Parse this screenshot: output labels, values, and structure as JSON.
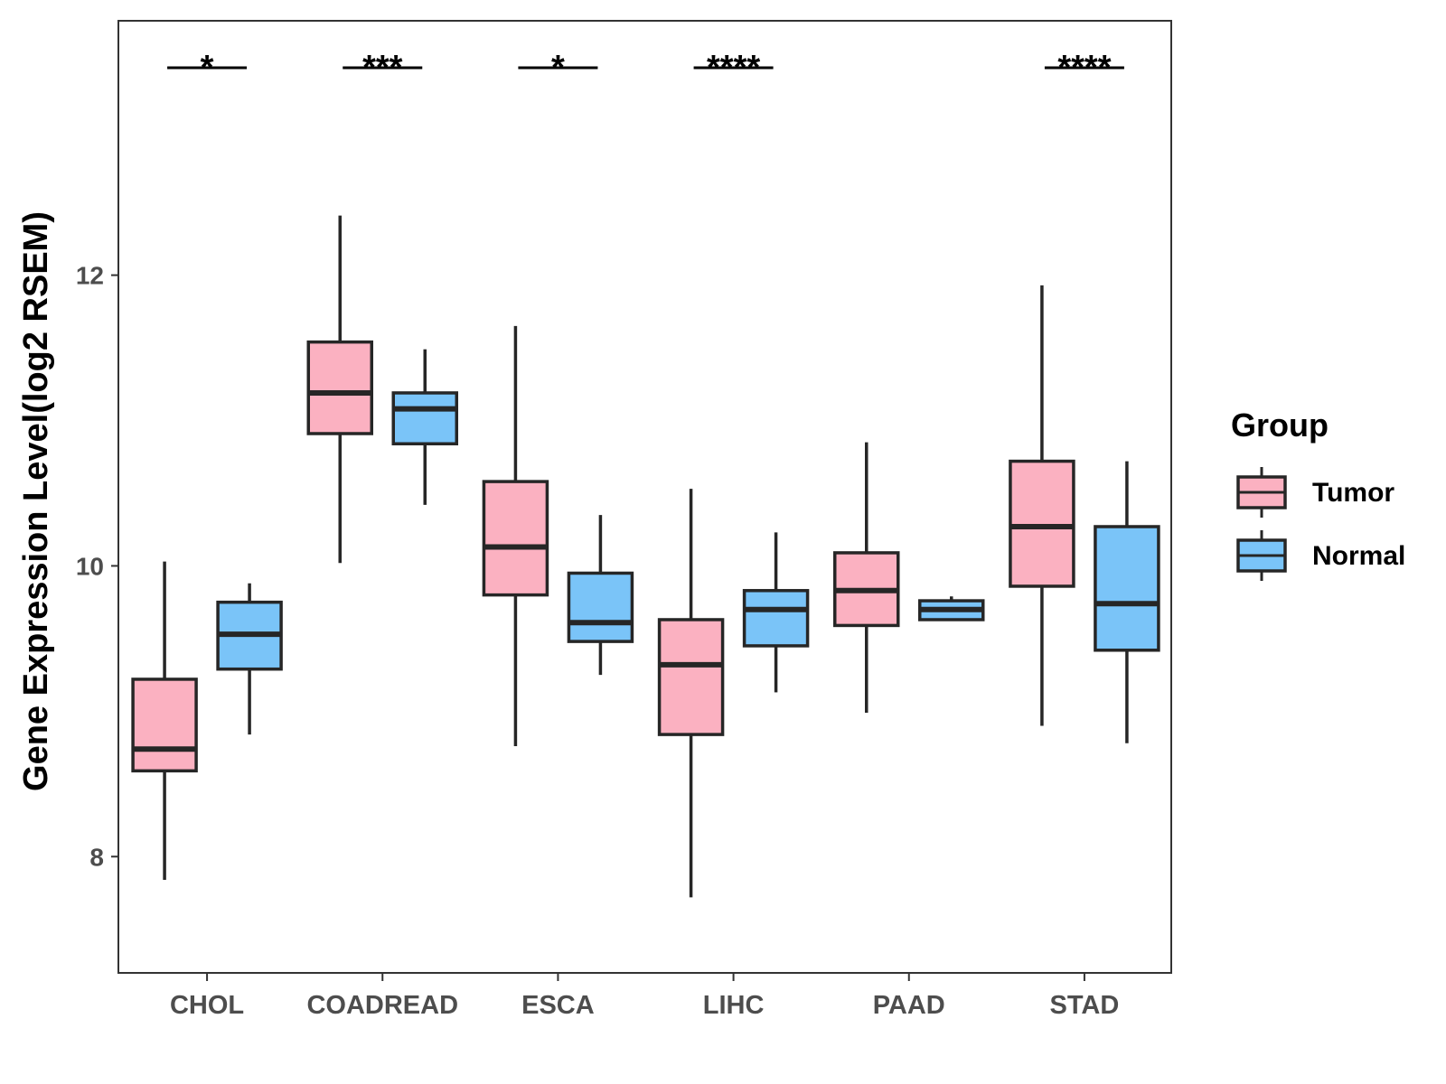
{
  "chart_data": {
    "type": "boxplot",
    "ylabel": "Gene Expression Level(log2 RSEM)",
    "xlabel": "",
    "ylim": [
      7.2,
      13.75
    ],
    "yticks": [
      8,
      10,
      12
    ],
    "grid": false,
    "legend": {
      "title": "Group",
      "placement": "right",
      "entries": [
        "Tumor",
        "Normal"
      ]
    },
    "categories": [
      "CHOL",
      "COADREAD",
      "ESCA",
      "LIHC",
      "PAAD",
      "STAD"
    ],
    "colors": {
      "Tumor": "#fbb1c1",
      "Normal": "#7ac4f8",
      "outline": "#262626",
      "axis": "#333333",
      "sig": "#000000"
    },
    "series": [
      {
        "name": "Tumor",
        "boxes": [
          {
            "min": 7.84,
            "q1": 8.59,
            "median": 8.74,
            "q3": 9.22,
            "max": 10.03
          },
          {
            "min": 10.02,
            "q1": 10.91,
            "median": 11.19,
            "q3": 11.54,
            "max": 12.41
          },
          {
            "min": 8.76,
            "q1": 9.8,
            "median": 10.13,
            "q3": 10.58,
            "max": 11.65
          },
          {
            "min": 7.72,
            "q1": 8.84,
            "median": 9.32,
            "q3": 9.63,
            "max": 10.53
          },
          {
            "min": 8.99,
            "q1": 9.59,
            "median": 9.83,
            "q3": 10.09,
            "max": 10.85
          },
          {
            "min": 8.9,
            "q1": 9.86,
            "median": 10.27,
            "q3": 10.72,
            "max": 11.93
          }
        ]
      },
      {
        "name": "Normal",
        "boxes": [
          {
            "min": 8.84,
            "q1": 9.29,
            "median": 9.53,
            "q3": 9.75,
            "max": 9.88
          },
          {
            "min": 10.42,
            "q1": 10.84,
            "median": 11.08,
            "q3": 11.19,
            "max": 11.49
          },
          {
            "min": 9.25,
            "q1": 9.48,
            "median": 9.61,
            "q3": 9.95,
            "max": 10.35
          },
          {
            "min": 9.13,
            "q1": 9.45,
            "median": 9.7,
            "q3": 9.83,
            "max": 10.23
          },
          {
            "min": 9.63,
            "q1": 9.63,
            "median": 9.7,
            "q3": 9.76,
            "max": 9.79
          },
          {
            "min": 8.78,
            "q1": 9.42,
            "median": 9.74,
            "q3": 10.27,
            "max": 10.72
          }
        ]
      }
    ],
    "significance": [
      {
        "category": "CHOL",
        "label": "*"
      },
      {
        "category": "COADREAD",
        "label": "***"
      },
      {
        "category": "ESCA",
        "label": "*"
      },
      {
        "category": "LIHC",
        "label": "****"
      },
      {
        "category": "STAD",
        "label": "****"
      }
    ]
  }
}
